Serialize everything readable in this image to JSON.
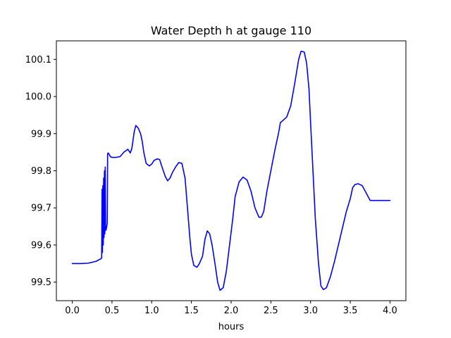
{
  "chart_data": {
    "type": "line",
    "title": "Water Depth h at gauge 110",
    "xlabel": "hours",
    "ylabel": "",
    "xlim": [
      -0.2,
      4.2
    ],
    "ylim": [
      99.45,
      100.15
    ],
    "grid": false,
    "legend": "none",
    "xticks": [
      0.0,
      0.5,
      1.0,
      1.5,
      2.0,
      2.5,
      3.0,
      3.5,
      4.0
    ],
    "xtick_labels": [
      "0.0",
      "0.5",
      "1.0",
      "1.5",
      "2.0",
      "2.5",
      "3.0",
      "3.5",
      "4.0"
    ],
    "yticks": [
      99.5,
      99.6,
      99.7,
      99.8,
      99.9,
      100.0,
      100.1
    ],
    "ytick_labels": [
      "99.5",
      "99.6",
      "99.7",
      "99.8",
      "99.9",
      "100.0",
      "100.1"
    ],
    "series": [
      {
        "color": "#0000ff",
        "x": [
          0.0,
          0.1,
          0.2,
          0.3,
          0.36,
          0.37,
          0.375,
          0.38,
          0.385,
          0.39,
          0.395,
          0.4,
          0.405,
          0.41,
          0.415,
          0.42,
          0.425,
          0.43,
          0.435,
          0.44,
          0.445,
          0.45,
          0.46,
          0.47,
          0.48,
          0.49,
          0.5,
          0.55,
          0.6,
          0.65,
          0.7,
          0.73,
          0.75,
          0.78,
          0.8,
          0.83,
          0.86,
          0.88,
          0.9,
          0.93,
          0.97,
          1.0,
          1.03,
          1.07,
          1.1,
          1.13,
          1.17,
          1.2,
          1.23,
          1.26,
          1.3,
          1.34,
          1.38,
          1.42,
          1.45,
          1.48,
          1.5,
          1.53,
          1.57,
          1.6,
          1.64,
          1.67,
          1.7,
          1.73,
          1.76,
          1.8,
          1.83,
          1.86,
          1.9,
          1.94,
          1.98,
          2.02,
          2.05,
          2.1,
          2.15,
          2.2,
          2.25,
          2.3,
          2.35,
          2.38,
          2.41,
          2.45,
          2.5,
          2.55,
          2.6,
          2.62,
          2.65,
          2.7,
          2.75,
          2.8,
          2.85,
          2.88,
          2.92,
          2.95,
          2.98,
          3.0,
          3.03,
          3.06,
          3.1,
          3.13,
          3.16,
          3.2,
          3.25,
          3.3,
          3.35,
          3.4,
          3.45,
          3.5,
          3.53,
          3.56,
          3.6,
          3.65,
          3.7,
          3.75,
          3.8,
          3.85,
          3.9,
          3.93,
          3.95,
          3.97,
          4.0
        ],
        "y": [
          99.55,
          99.55,
          99.551,
          99.556,
          99.563,
          99.565,
          99.75,
          99.58,
          99.76,
          99.6,
          99.78,
          99.62,
          99.8,
          99.63,
          99.81,
          99.64,
          99.64,
          99.645,
          99.65,
          99.66,
          99.845,
          99.848,
          99.846,
          99.842,
          99.838,
          99.837,
          99.836,
          99.836,
          99.838,
          99.85,
          99.858,
          99.848,
          99.86,
          99.905,
          99.922,
          99.915,
          99.9,
          99.88,
          99.85,
          99.82,
          99.813,
          99.818,
          99.828,
          99.832,
          99.83,
          99.81,
          99.785,
          99.773,
          99.78,
          99.795,
          99.81,
          99.822,
          99.82,
          99.78,
          99.7,
          99.62,
          99.575,
          99.545,
          99.54,
          99.55,
          99.57,
          99.615,
          99.638,
          99.63,
          99.6,
          99.545,
          99.5,
          99.478,
          99.485,
          99.53,
          99.6,
          99.67,
          99.73,
          99.77,
          99.783,
          99.775,
          99.745,
          99.7,
          99.675,
          99.675,
          99.69,
          99.745,
          99.8,
          99.855,
          99.905,
          99.93,
          99.935,
          99.945,
          99.975,
          100.035,
          100.1,
          100.122,
          100.12,
          100.09,
          100.02,
          99.93,
          99.8,
          99.67,
          99.55,
          99.49,
          99.48,
          99.485,
          99.515,
          99.555,
          99.6,
          99.645,
          99.69,
          99.725,
          99.755,
          99.763,
          99.765,
          99.76,
          99.74,
          99.72,
          99.72,
          99.72,
          99.72,
          99.72,
          99.72,
          99.72,
          99.72
        ]
      }
    ]
  }
}
